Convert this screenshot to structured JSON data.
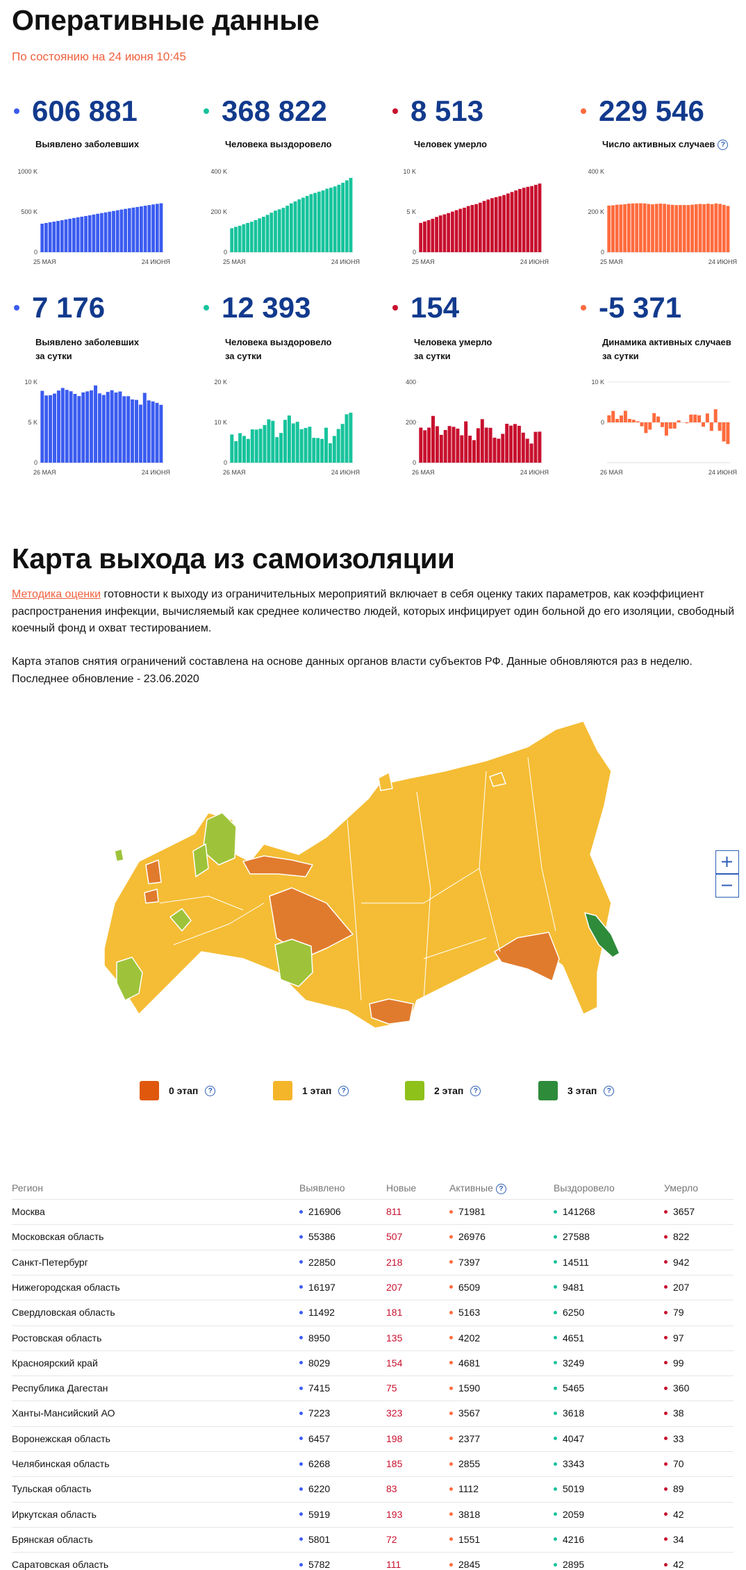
{
  "header": {
    "title": "Оперативные данные",
    "subtitle": "По состоянию на 24 июня 10:45"
  },
  "stats": [
    {
      "value": "606 881",
      "label": [
        "Выявлено заболевших"
      ],
      "color": "#3b5cf0",
      "chart": {
        "type": "bar",
        "ylim": [
          0,
          1000000
        ],
        "yticks": [
          0,
          {
            "value": 500000,
            "label": "500 K"
          },
          {
            "value": 1000000,
            "label": "1000 K"
          }
        ],
        "grid": false,
        "xlabels": [
          "25 МАЯ",
          "24 ИЮНЯ"
        ],
        "values": [
          353427,
          362342,
          370680,
          379051,
          387623,
          396575,
          405843,
          414878,
          423741,
          432277,
          440538,
          449256,
          458102,
          467073,
          476658,
          485253,
          493657,
          502436,
          511423,
          520129,
          528964,
          537210,
          545458,
          553301,
          561091,
          568292,
          576952,
          584680,
          592280,
          599705,
          606881
        ]
      }
    },
    {
      "value": "368 822",
      "label": [
        "Человека выздоровело"
      ],
      "color": "#17c39c",
      "chart": {
        "type": "bar",
        "ylim": [
          0,
          400000
        ],
        "yticks": [
          0,
          {
            "value": 200000,
            "label": "200 K"
          },
          {
            "value": 400000,
            "label": "400 K"
          }
        ],
        "grid": false,
        "xlabels": [
          "25 МАЯ",
          "24 ИЮНЯ"
        ],
        "values": [
          118798,
          125793,
          131129,
          138456,
          145093,
          150993,
          159256,
          167469,
          175877,
          185212,
          195957,
          206340,
          212680,
          220060,
          230688,
          242397,
          252140,
          262283,
          270599,
          279217,
          288140,
          294306,
          300427,
          306330,
          315005,
          319818,
          326448,
          334800,
          344416,
          356429,
          368822
        ]
      }
    },
    {
      "value": "8 513",
      "label": [
        "Человек умерло"
      ],
      "color": "#c8102e",
      "chart": {
        "type": "bar",
        "ylim": [
          0,
          10000
        ],
        "yticks": [
          0,
          {
            "value": 5000,
            "label": "5 K"
          },
          {
            "value": 10000,
            "label": "10 K"
          }
        ],
        "grid": false,
        "xlabels": [
          "25 МАЯ",
          "24 ИЮНЯ"
        ],
        "values": [
          3633,
          3807,
          3968,
          4142,
          4374,
          4555,
          4693,
          4855,
          5037,
          5215,
          5384,
          5520,
          5725,
          5859,
          5971,
          6142,
          6358,
          6532,
          6705,
          6829,
          6948,
          7091,
          7284,
          7468,
          7660,
          7843,
          7992,
          8111,
          8206,
          8359,
          8513
        ]
      }
    },
    {
      "value": "229 546",
      "label": [
        "Число активных случаев"
      ],
      "help": true,
      "color": "#ff6b3d",
      "chart": {
        "type": "bar",
        "ylim": [
          0,
          400000
        ],
        "yticks": [
          0,
          {
            "value": 200000,
            "label": "200 K"
          },
          {
            "value": 400000,
            "label": "400 K"
          }
        ],
        "grid": false,
        "xlabels": [
          "25 МАЯ",
          "24 ИЮНЯ"
        ],
        "values": [
          230996,
          232742,
          235583,
          236453,
          238156,
          241027,
          241894,
          242554,
          242827,
          241850,
          239197,
          237396,
          239697,
          241154,
          239999,
          236714,
          235159,
          233621,
          234119,
          234083,
          233876,
          235813,
          237747,
          239503,
          238426,
          240631,
          238512,
          241769,
          239658,
          234917,
          229546
        ]
      }
    },
    {
      "value": "7 176",
      "label": [
        "Выявлено заболевших",
        "за сутки"
      ],
      "color": "#3b5cf0",
      "chart": {
        "type": "bar",
        "ylim": [
          0,
          10000
        ],
        "yticks": [
          0,
          {
            "value": 5000,
            "label": "5 K"
          },
          {
            "value": 10000,
            "label": "10 K"
          }
        ],
        "grid": false,
        "xlabels": [
          "26 МАЯ",
          "24 ИЮНЯ"
        ],
        "values": [
          8915,
          8338,
          8371,
          8572,
          8952,
          9268,
          9035,
          8863,
          8536,
          8261,
          8718,
          8846,
          8971,
          9585,
          8595,
          8404,
          8779,
          8987,
          8706,
          8835,
          8246,
          8248,
          7843,
          7790,
          7201,
          8660,
          7728,
          7600,
          7425,
          7176
        ]
      }
    },
    {
      "value": "12 393",
      "label": [
        "Человека выздоровело",
        "за сутки"
      ],
      "color": "#17c39c",
      "chart": {
        "type": "bar",
        "ylim": [
          0,
          20000
        ],
        "yticks": [
          0,
          {
            "value": 10000,
            "label": "10 K"
          },
          {
            "value": 20000,
            "label": "20 K"
          }
        ],
        "grid": false,
        "xlabels": [
          "26 МАЯ",
          "24 ИЮНЯ"
        ],
        "values": [
          6995,
          5336,
          7327,
          6637,
          5900,
          8263,
          8213,
          8408,
          9335,
          10745,
          10383,
          6340,
          7380,
          10628,
          11709,
          9743,
          10143,
          8316,
          8618,
          8923,
          6166,
          6121,
          5903,
          8675,
          4813,
          6630,
          8352,
          9616,
          12013,
          12393
        ]
      }
    },
    {
      "value": "154",
      "label": [
        "Человека умерло",
        "за сутки"
      ],
      "color": "#c8102e",
      "chart": {
        "type": "bar",
        "ylim": [
          0,
          400
        ],
        "yticks": [
          0,
          200,
          400
        ],
        "grid": false,
        "xlabels": [
          "26 МАЯ",
          "24 ИЮНЯ"
        ],
        "values": [
          174,
          161,
          174,
          232,
          181,
          138,
          162,
          182,
          178,
          169,
          136,
          205,
          134,
          112,
          171,
          216,
          174,
          173,
          124,
          119,
          143,
          193,
          184,
          192,
          183,
          149,
          119,
          95,
          153,
          154
        ]
      }
    },
    {
      "value": "-5 371",
      "label": [
        "Динамика активных случаев",
        "за сутки"
      ],
      "color": "#ff6b3d",
      "chart": {
        "type": "bar",
        "ylim": [
          -10000,
          10000
        ],
        "yticks": [
          {
            "value": 10000,
            "label": "10 K"
          },
          0
        ],
        "grid": true,
        "xlabels": [
          "26 МАЯ",
          "24 ИЮНЯ"
        ],
        "values": [
          1746,
          2841,
          870,
          1703,
          2871,
          867,
          660,
          273,
          -977,
          -2653,
          -1801,
          2301,
          1457,
          -1155,
          -3285,
          -1555,
          -1538,
          498,
          -36,
          -207,
          1937,
          1934,
          1756,
          -1077,
          2205,
          -2119,
          3257,
          -2111,
          -4741,
          -5371
        ]
      }
    }
  ],
  "map_section": {
    "title": "Карта выхода из самоизоляции",
    "methodology_link": "Методика оценки",
    "paragraph1": "готовности к выходу из ограничительных мероприятий включает в себя оценку таких параметров, как коэффициент распространения инфекции, вычисляемый как среднее количество людей, которых инфицирует один больной до его изоляции, свободный коечный фонд и охват тестированием.",
    "paragraph2": "Карта этапов снятия ограничений составлена на основе данных органов власти субъектов РФ. Данные обновляются раз в неделю. Последнее обновление - 23.06.2020",
    "legend": [
      {
        "label": "0 этап",
        "color": "#e0580c"
      },
      {
        "label": "1 этап",
        "color": "#f5b52a"
      },
      {
        "label": "2 этап",
        "color": "#8fc11b"
      },
      {
        "label": "3 этап",
        "color": "#2e8b3a"
      }
    ]
  },
  "table": {
    "columns": [
      {
        "name": "Регион"
      },
      {
        "name": "Выявлено",
        "color": "#3b5cf0"
      },
      {
        "name": "Новые",
        "text_color": "#c8102e"
      },
      {
        "name": "Активные",
        "color": "#ff6b3d",
        "help": true
      },
      {
        "name": "Выздоровело",
        "color": "#17c39c"
      },
      {
        "name": "Умерло",
        "color": "#c8102e"
      }
    ],
    "rows": [
      [
        "Москва",
        216906,
        811,
        71981,
        141268,
        3657
      ],
      [
        "Московская область",
        55386,
        507,
        26976,
        27588,
        822
      ],
      [
        "Санкт-Петербург",
        22850,
        218,
        7397,
        14511,
        942
      ],
      [
        "Нижегородская область",
        16197,
        207,
        6509,
        9481,
        207
      ],
      [
        "Свердловская область",
        11492,
        181,
        5163,
        6250,
        79
      ],
      [
        "Ростовская область",
        8950,
        135,
        4202,
        4651,
        97
      ],
      [
        "Красноярский край",
        8029,
        154,
        4681,
        3249,
        99
      ],
      [
        "Республика Дагестан",
        7415,
        75,
        1590,
        5465,
        360
      ],
      [
        "Ханты-Мансийский АО",
        7223,
        323,
        3567,
        3618,
        38
      ],
      [
        "Воронежская область",
        6457,
        198,
        2377,
        4047,
        33
      ],
      [
        "Челябинская область",
        6268,
        185,
        2855,
        3343,
        70
      ],
      [
        "Тульская область",
        6220,
        83,
        1112,
        5019,
        89
      ],
      [
        "Иркутская область",
        5919,
        193,
        3818,
        2059,
        42
      ],
      [
        "Брянская область",
        5801,
        72,
        1551,
        4216,
        34
      ],
      [
        "Саратовская область",
        5782,
        111,
        2845,
        2895,
        42
      ]
    ]
  }
}
